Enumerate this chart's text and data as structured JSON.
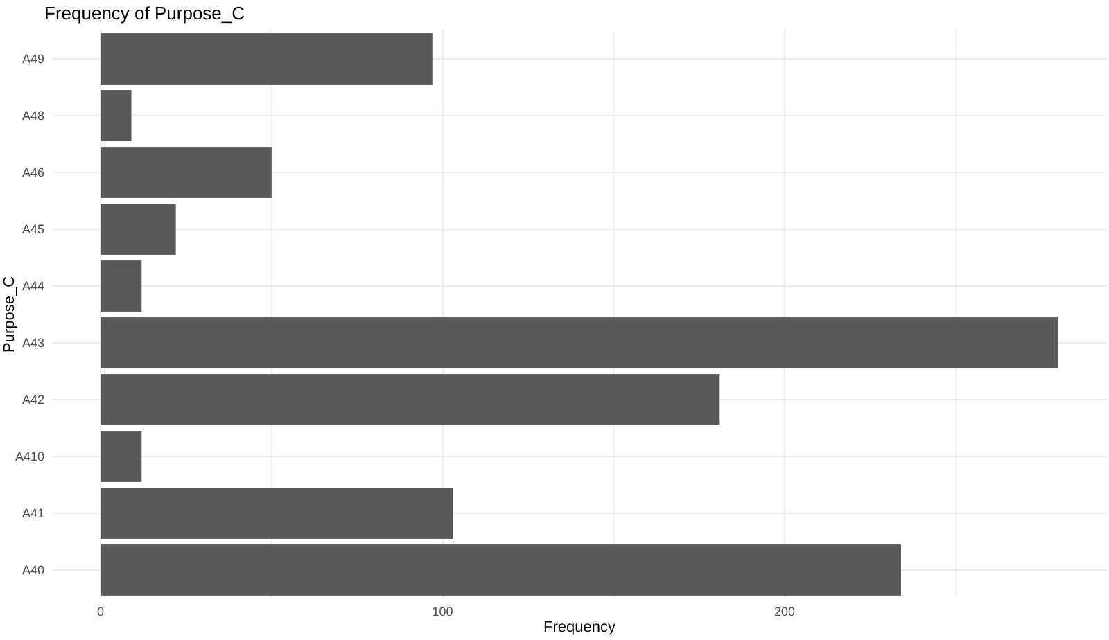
{
  "chart_data": {
    "type": "bar",
    "orientation": "horizontal",
    "title": "Frequency of Purpose_C",
    "xlabel": "Frequency",
    "ylabel": "Purpose_C",
    "categories": [
      "A49",
      "A48",
      "A46",
      "A45",
      "A44",
      "A43",
      "A42",
      "A410",
      "A41",
      "A40"
    ],
    "values": [
      97,
      9,
      50,
      22,
      12,
      280,
      181,
      12,
      103,
      234
    ],
    "color": "#595959",
    "xlim": [
      -14,
      294
    ],
    "xticks": [
      0,
      {
        "value": 50,
        "label": null
      },
      100,
      {
        "value": 150,
        "label": null
      },
      200,
      {
        "value": 250,
        "label": null
      }
    ],
    "grid": true
  }
}
